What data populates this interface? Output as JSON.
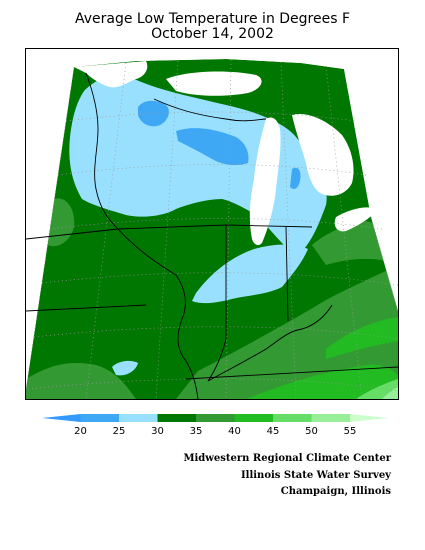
{
  "title": {
    "line1": "Average Low Temperature in Degrees F",
    "line2": "October 14, 2002"
  },
  "legend": {
    "ticks": [
      "20",
      "25",
      "30",
      "35",
      "40",
      "45",
      "50",
      "55"
    ],
    "bins": [
      {
        "range": "< 20",
        "color": "#3399ff"
      },
      {
        "range": "20-25",
        "color": "#3fa8f4"
      },
      {
        "range": "25-30",
        "color": "#99e0ff"
      },
      {
        "range": "30-35",
        "color": "#007700"
      },
      {
        "range": "35-40",
        "color": "#339933"
      },
      {
        "range": "40-45",
        "color": "#22bb22"
      },
      {
        "range": "45-50",
        "color": "#66dd66"
      },
      {
        "range": "50-55",
        "color": "#99ee99"
      },
      {
        "range": "> 55",
        "color": "#ccffcc"
      }
    ]
  },
  "colors": {
    "water": "#ffffff",
    "below20": "#3399ff",
    "t20_25": "#3fa8f4",
    "t25_30": "#99e0ff",
    "t30_35": "#007700",
    "t35_40": "#339933",
    "t40_45": "#22bb22",
    "t45_50": "#66dd66",
    "t50_55": "#99ee99"
  },
  "credits": {
    "line1": "Midwestern Regional Climate Center",
    "line2": "Illinois State Water Survey",
    "line3": "Champaign, Illinois"
  }
}
